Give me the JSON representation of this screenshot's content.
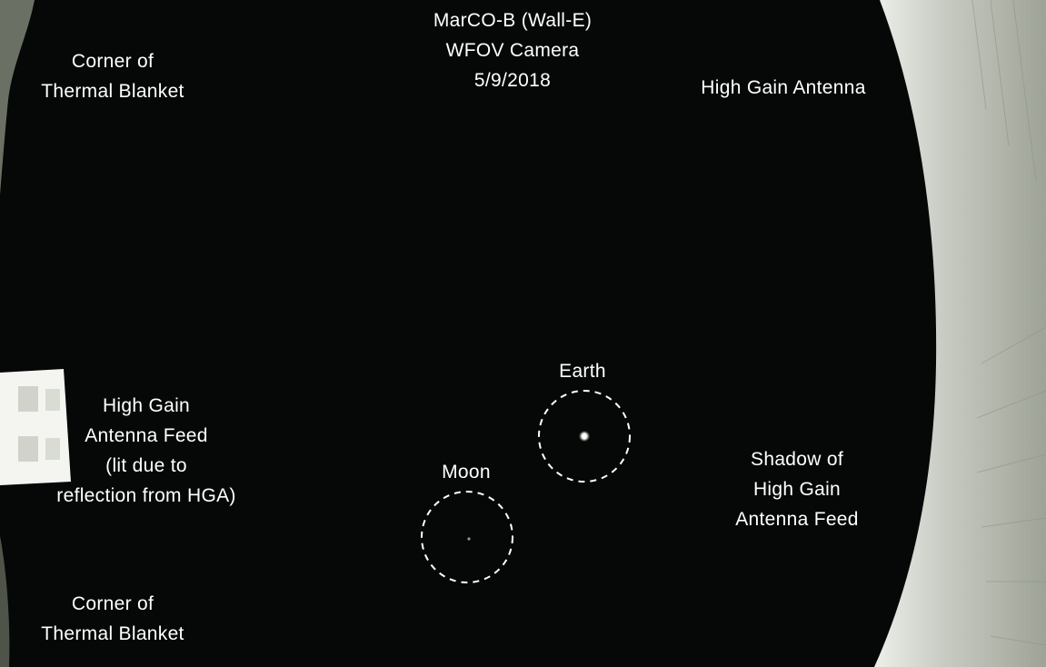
{
  "title": {
    "line1": "MarCO-B (Wall-E)",
    "line2": "WFOV Camera",
    "line3": "5/9/2018"
  },
  "labels": {
    "blanket_top": [
      "Corner of",
      "Thermal Blanket"
    ],
    "blanket_bottom": [
      "Corner of",
      "Thermal Blanket"
    ],
    "hga": "High Gain Antenna",
    "hga_feed": [
      "High Gain",
      "Antenna Feed",
      "(lit due to",
      "reflection from HGA)"
    ],
    "shadow": [
      "Shadow of",
      "High Gain",
      "Antenna Feed"
    ],
    "earth": "Earth",
    "moon": "Moon"
  },
  "colors": {
    "sky": "#050806",
    "panel_light": "#c9ccc4",
    "panel_mid": "#9aa093",
    "feed_lit": "#f4f5f1",
    "label": "#ffffff"
  }
}
